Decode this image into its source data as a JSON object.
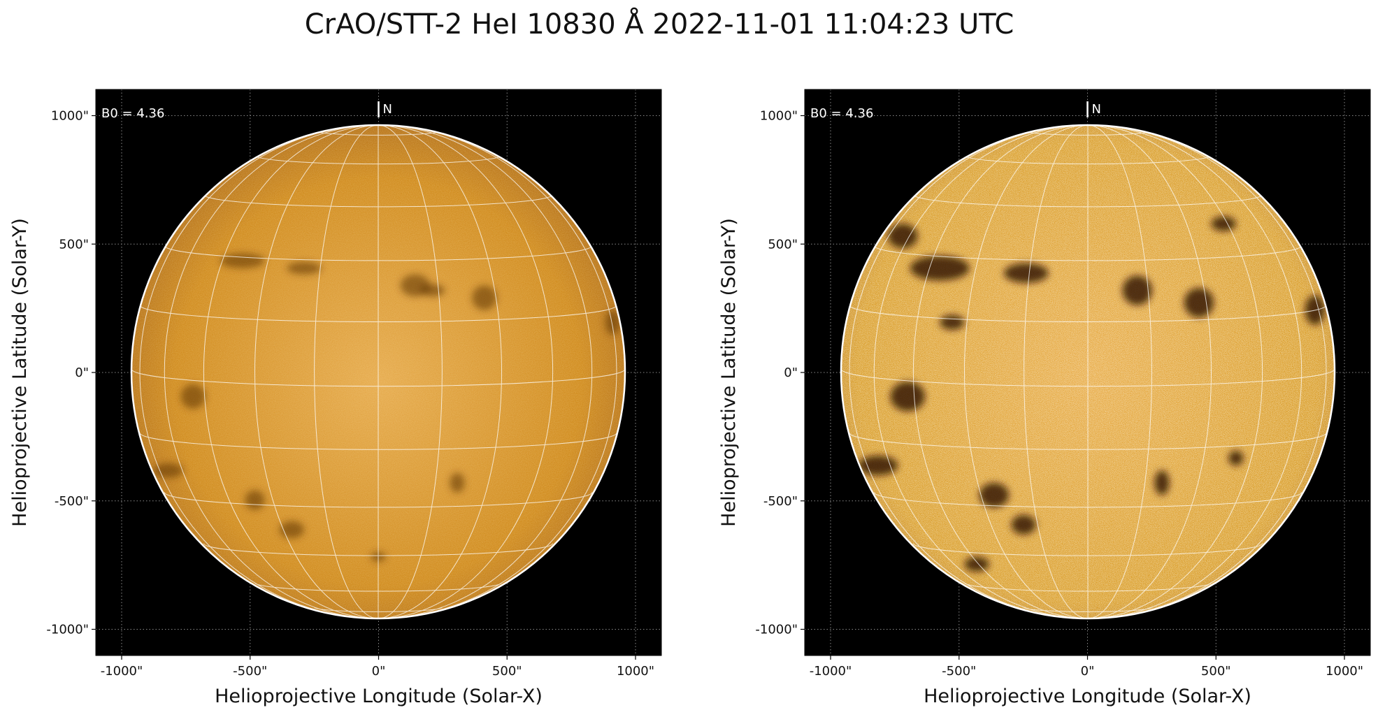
{
  "figure": {
    "title": "CrAO/STT-2 HeI 10830 Å 2022-11-01 11:04:23 UTC",
    "panels": [
      {
        "id": "left",
        "annotation": "B0 = 4.36",
        "north_label": "N",
        "xlabel": "Helioprojective Longitude (Solar-X)",
        "ylabel": "Helioprojective Latitude (Solar-Y)",
        "xticks": [
          "-1000\"",
          "-500\"",
          "0\"",
          "500\"",
          "1000\""
        ],
        "yticks": [
          "1000\"",
          "500\"",
          "0\"",
          "-500\"",
          "-1000\""
        ],
        "rendering": "smooth"
      },
      {
        "id": "right",
        "annotation": "B0 = 4.36",
        "north_label": "N",
        "xlabel": "Helioprojective Longitude (Solar-X)",
        "ylabel": "Helioprojective Latitude (Solar-Y)",
        "xticks": [
          "-1000\"",
          "-500\"",
          "0\"",
          "500\"",
          "1000\""
        ],
        "yticks": [
          "1000\"",
          "500\"",
          "0\"",
          "-500\"",
          "-1000\""
        ],
        "rendering": "contrast-enhanced"
      }
    ],
    "colors": {
      "background": "#000000",
      "disk_base": "#c87a08",
      "disk_highlight": "#e9a83a",
      "grid": "#ffffff"
    }
  }
}
